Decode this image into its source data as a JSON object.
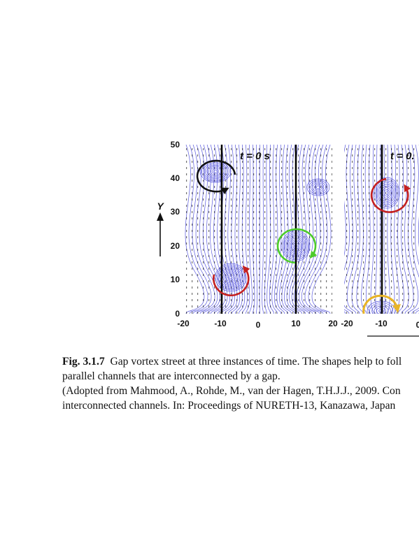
{
  "figure": {
    "panels": [
      {
        "time_label": "t = 0 s"
      },
      {
        "time_label": "t = 0."
      }
    ],
    "y_axis_name": "Y",
    "y_ticks": [
      "50",
      "40",
      "30",
      "20",
      "10",
      "0"
    ],
    "x_ticks": [
      "-20",
      "-10",
      "0",
      "10",
      "20",
      "-20",
      "-10",
      "0"
    ],
    "colors": {
      "streamlines": "#3b3bd6",
      "vectors": "#000000",
      "vortex_black": "#111111",
      "vortex_red": "#c42020",
      "vortex_green": "#4ccc2a",
      "vortex_yellow": "#e8b428"
    }
  },
  "caption": {
    "fig_label": "Fig. 3.1.7",
    "line1": "Gap vortex street at three instances of time. The shapes help to foll",
    "line2": "parallel channels that are interconnected by a gap.",
    "line3": "(Adopted from Mahmood, A., Rohde, M., van der Hagen, T.H.J.J., 2009. Con",
    "line4": "interconnected channels. In: Proceedings of NURETH-13, Kanazawa, Japan"
  }
}
